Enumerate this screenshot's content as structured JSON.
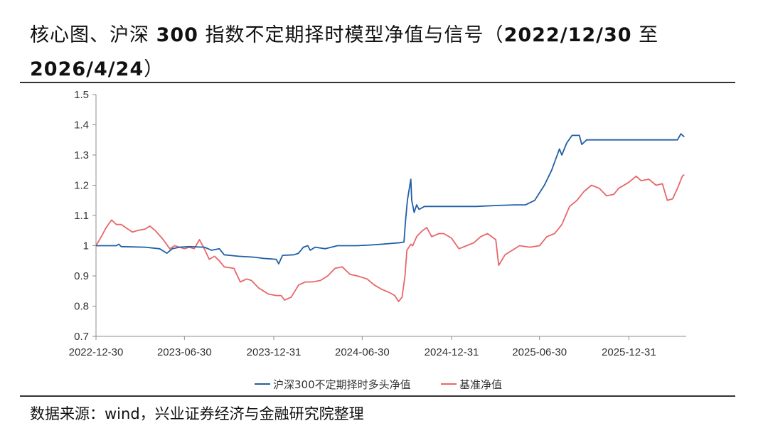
{
  "title": {
    "part1": "核心图、沪深 ",
    "bold1": "300",
    "part2": " 指数不定期择时模型净值与信号（",
    "bold2": "2022/12/30",
    "part3": " 至 ",
    "bold3": "2026/4/24",
    "part4": "）"
  },
  "source": "数据来源：wind，兴业证券经济与金融研究院整理",
  "chart_data": {
    "type": "line",
    "xlabel": "",
    "ylabel": "",
    "ylim": [
      0.7,
      1.5
    ],
    "yticks": [
      "1.5",
      "1.4",
      "1.3",
      "1.2",
      "1.1",
      "1",
      "0.9",
      "0.8",
      "0.7"
    ],
    "xticks": [
      "2022-12-30",
      "2023-06-30",
      "2023-12-31",
      "2024-06-30",
      "2024-12-31",
      "2025-06-30",
      "2025-12-31"
    ],
    "grid": false,
    "legend_position": "bottom",
    "series": [
      {
        "name": "沪深300不定期择时多头净值",
        "color": "#1f5fa6",
        "points": [
          [
            "2022-12-30",
            1.0
          ],
          [
            "2023-02-10",
            1.0
          ],
          [
            "2023-02-15",
            1.005
          ],
          [
            "2023-02-20",
            0.997
          ],
          [
            "2023-04-10",
            0.995
          ],
          [
            "2023-05-10",
            0.99
          ],
          [
            "2023-05-25",
            0.975
          ],
          [
            "2023-06-05",
            0.99
          ],
          [
            "2023-06-20",
            0.995
          ],
          [
            "2023-07-10",
            0.997
          ],
          [
            "2023-08-10",
            0.995
          ],
          [
            "2023-08-25",
            0.985
          ],
          [
            "2023-09-10",
            0.99
          ],
          [
            "2023-09-20",
            0.97
          ],
          [
            "2023-10-20",
            0.965
          ],
          [
            "2023-11-20",
            0.962
          ],
          [
            "2023-12-10",
            0.958
          ],
          [
            "2024-01-05",
            0.955
          ],
          [
            "2024-01-10",
            0.94
          ],
          [
            "2024-01-18",
            0.968
          ],
          [
            "2024-02-10",
            0.97
          ],
          [
            "2024-02-20",
            0.975
          ],
          [
            "2024-03-01",
            0.995
          ],
          [
            "2024-03-10",
            1.0
          ],
          [
            "2024-03-15",
            0.985
          ],
          [
            "2024-03-25",
            0.995
          ],
          [
            "2024-04-15",
            0.99
          ],
          [
            "2024-05-10",
            1.0
          ],
          [
            "2024-06-20",
            1.0
          ],
          [
            "2024-07-15",
            1.002
          ],
          [
            "2024-08-10",
            1.005
          ],
          [
            "2024-09-15",
            1.01
          ],
          [
            "2024-09-24",
            1.012
          ],
          [
            "2024-09-27",
            1.08
          ],
          [
            "2024-10-01",
            1.15
          ],
          [
            "2024-10-08",
            1.22
          ],
          [
            "2024-10-10",
            1.15
          ],
          [
            "2024-10-15",
            1.11
          ],
          [
            "2024-10-20",
            1.135
          ],
          [
            "2024-10-25",
            1.12
          ],
          [
            "2024-11-05",
            1.13
          ],
          [
            "2024-12-20",
            1.13
          ],
          [
            "2025-02-20",
            1.13
          ],
          [
            "2025-04-01",
            1.133
          ],
          [
            "2025-05-10",
            1.135
          ],
          [
            "2025-06-01",
            1.135
          ],
          [
            "2025-06-20",
            1.15
          ],
          [
            "2025-07-10",
            1.2
          ],
          [
            "2025-07-25",
            1.25
          ],
          [
            "2025-08-10",
            1.32
          ],
          [
            "2025-08-15",
            1.3
          ],
          [
            "2025-08-25",
            1.34
          ],
          [
            "2025-09-05",
            1.365
          ],
          [
            "2025-09-20",
            1.365
          ],
          [
            "2025-09-25",
            1.335
          ],
          [
            "2025-10-05",
            1.35
          ],
          [
            "2025-11-10",
            1.35
          ],
          [
            "2026-01-20",
            1.35
          ],
          [
            "2026-03-10",
            1.35
          ],
          [
            "2026-04-10",
            1.35
          ],
          [
            "2026-04-17",
            1.37
          ],
          [
            "2026-04-24",
            1.36
          ]
        ]
      },
      {
        "name": "基准净值",
        "color": "#e8666a",
        "points": [
          [
            "2022-12-30",
            1.0
          ],
          [
            "2023-01-10",
            1.03
          ],
          [
            "2023-01-20",
            1.06
          ],
          [
            "2023-01-31",
            1.085
          ],
          [
            "2023-02-10",
            1.07
          ],
          [
            "2023-02-20",
            1.07
          ],
          [
            "2023-03-01",
            1.06
          ],
          [
            "2023-03-15",
            1.045
          ],
          [
            "2023-03-25",
            1.05
          ],
          [
            "2023-04-10",
            1.055
          ],
          [
            "2023-04-20",
            1.065
          ],
          [
            "2023-05-01",
            1.05
          ],
          [
            "2023-05-15",
            1.025
          ],
          [
            "2023-05-31",
            0.99
          ],
          [
            "2023-06-10",
            1.0
          ],
          [
            "2023-06-20",
            0.995
          ],
          [
            "2023-06-30",
            0.99
          ],
          [
            "2023-07-10",
            0.995
          ],
          [
            "2023-07-20",
            0.99
          ],
          [
            "2023-07-31",
            1.02
          ],
          [
            "2023-08-10",
            0.99
          ],
          [
            "2023-08-20",
            0.955
          ],
          [
            "2023-08-31",
            0.965
          ],
          [
            "2023-09-10",
            0.95
          ],
          [
            "2023-09-20",
            0.93
          ],
          [
            "2023-10-10",
            0.925
          ],
          [
            "2023-10-23",
            0.88
          ],
          [
            "2023-11-05",
            0.89
          ],
          [
            "2023-11-15",
            0.885
          ],
          [
            "2023-11-30",
            0.86
          ],
          [
            "2023-12-10",
            0.85
          ],
          [
            "2023-12-20",
            0.84
          ],
          [
            "2024-01-05",
            0.835
          ],
          [
            "2024-01-15",
            0.835
          ],
          [
            "2024-01-22",
            0.82
          ],
          [
            "2024-02-05",
            0.83
          ],
          [
            "2024-02-20",
            0.87
          ],
          [
            "2024-03-05",
            0.88
          ],
          [
            "2024-03-20",
            0.88
          ],
          [
            "2024-04-05",
            0.885
          ],
          [
            "2024-04-20",
            0.9
          ],
          [
            "2024-05-05",
            0.925
          ],
          [
            "2024-05-20",
            0.93
          ],
          [
            "2024-06-05",
            0.905
          ],
          [
            "2024-06-20",
            0.9
          ],
          [
            "2024-07-10",
            0.89
          ],
          [
            "2024-07-25",
            0.87
          ],
          [
            "2024-08-10",
            0.855
          ],
          [
            "2024-08-25",
            0.845
          ],
          [
            "2024-09-05",
            0.835
          ],
          [
            "2024-09-13",
            0.815
          ],
          [
            "2024-09-20",
            0.83
          ],
          [
            "2024-09-26",
            0.9
          ],
          [
            "2024-09-30",
            0.985
          ],
          [
            "2024-10-08",
            1.005
          ],
          [
            "2024-10-12",
            1.0
          ],
          [
            "2024-10-20",
            1.03
          ],
          [
            "2024-11-01",
            1.05
          ],
          [
            "2024-11-10",
            1.06
          ],
          [
            "2024-11-20",
            1.03
          ],
          [
            "2024-12-05",
            1.04
          ],
          [
            "2024-12-15",
            1.04
          ],
          [
            "2024-12-31",
            1.025
          ],
          [
            "2025-01-15",
            0.99
          ],
          [
            "2025-01-31",
            1.0
          ],
          [
            "2025-02-15",
            1.01
          ],
          [
            "2025-03-01",
            1.03
          ],
          [
            "2025-03-15",
            1.04
          ],
          [
            "2025-04-01",
            1.02
          ],
          [
            "2025-04-07",
            0.935
          ],
          [
            "2025-04-20",
            0.97
          ],
          [
            "2025-05-05",
            0.985
          ],
          [
            "2025-05-20",
            1.0
          ],
          [
            "2025-06-10",
            0.995
          ],
          [
            "2025-06-30",
            1.0
          ],
          [
            "2025-07-15",
            1.03
          ],
          [
            "2025-07-31",
            1.04
          ],
          [
            "2025-08-15",
            1.07
          ],
          [
            "2025-08-31",
            1.13
          ],
          [
            "2025-09-15",
            1.15
          ],
          [
            "2025-09-30",
            1.18
          ],
          [
            "2025-10-15",
            1.2
          ],
          [
            "2025-10-31",
            1.19
          ],
          [
            "2025-11-15",
            1.165
          ],
          [
            "2025-11-30",
            1.17
          ],
          [
            "2025-12-10",
            1.19
          ],
          [
            "2025-12-31",
            1.21
          ],
          [
            "2026-01-15",
            1.23
          ],
          [
            "2026-01-25",
            1.215
          ],
          [
            "2026-02-10",
            1.22
          ],
          [
            "2026-02-25",
            1.2
          ],
          [
            "2026-03-10",
            1.205
          ],
          [
            "2026-03-20",
            1.15
          ],
          [
            "2026-03-31",
            1.155
          ],
          [
            "2026-04-10",
            1.19
          ],
          [
            "2026-04-20",
            1.23
          ],
          [
            "2026-04-24",
            1.235
          ]
        ]
      }
    ]
  }
}
